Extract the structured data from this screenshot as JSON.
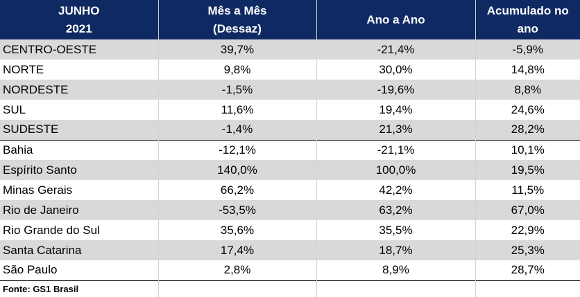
{
  "header": {
    "col1": [
      "JUNHO",
      "2021"
    ],
    "col2": [
      "Mês a Mês",
      "(Dessaz)"
    ],
    "col3": [
      "Ano a Ano"
    ],
    "col4": [
      "Acumulado no",
      "ano"
    ]
  },
  "rows": [
    {
      "name": "CENTRO-OESTE",
      "mom": "39,7%",
      "yoy": "-21,4%",
      "ytd": "-5,9%"
    },
    {
      "name": "NORTE",
      "mom": "9,8%",
      "yoy": "30,0%",
      "ytd": "14,8%"
    },
    {
      "name": "NORDESTE",
      "mom": "-1,5%",
      "yoy": "-19,6%",
      "ytd": "8,8%"
    },
    {
      "name": "SUL",
      "mom": "11,6%",
      "yoy": "19,4%",
      "ytd": "24,6%"
    },
    {
      "name": "SUDESTE",
      "mom": "-1,4%",
      "yoy": "21,3%",
      "ytd": "28,2%"
    },
    {
      "name": "Bahia",
      "mom": "-12,1%",
      "yoy": "-21,1%",
      "ytd": "10,1%"
    },
    {
      "name": "Espírito Santo",
      "mom": "140,0%",
      "yoy": "100,0%",
      "ytd": "19,5%"
    },
    {
      "name": "Minas Gerais",
      "mom": "66,2%",
      "yoy": "42,2%",
      "ytd": "11,5%"
    },
    {
      "name": "Rio de Janeiro",
      "mom": "-53,5%",
      "yoy": "63,2%",
      "ytd": "67,0%"
    },
    {
      "name": "Rio Grande do Sul",
      "mom": "35,6%",
      "yoy": "35,5%",
      "ytd": "22,9%"
    },
    {
      "name": "Santa Catarina",
      "mom": "17,4%",
      "yoy": "18,7%",
      "ytd": "25,3%"
    },
    {
      "name": "São Paulo",
      "mom": "2,8%",
      "yoy": "8,9%",
      "ytd": "28,7%"
    }
  ],
  "source": "Fonte: GS1 Brasil",
  "colors": {
    "header_bg": "#0f2a62",
    "shaded_row": "#d9d9d9"
  }
}
